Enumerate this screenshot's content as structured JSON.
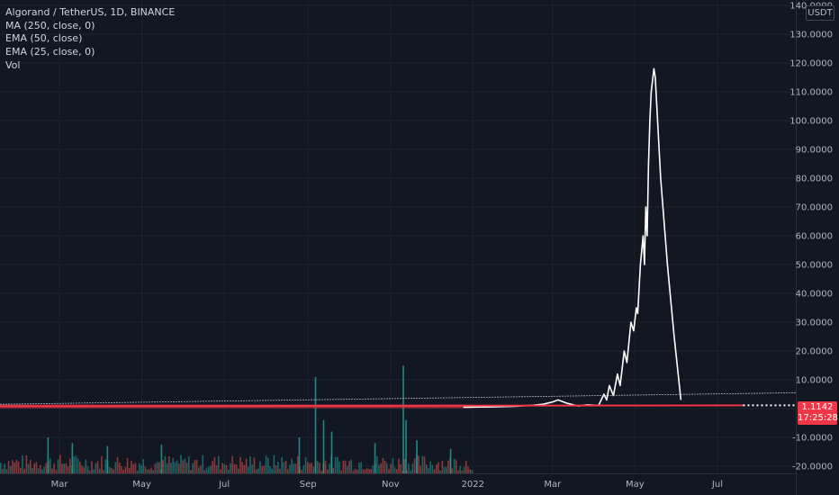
{
  "legend": {
    "symbol": "Algorand / TetherUS, 1D, BINANCE",
    "ma250": "MA (250, close, 0)",
    "ema50": "EMA (50, close)",
    "ema25": "EMA (25, close, 0)",
    "vol": "Vol"
  },
  "currency_label": "USDT",
  "last_price": {
    "value": "1.1142",
    "countdown": "17:25:28",
    "color": "#f23645"
  },
  "chart_data": {
    "type": "line",
    "title": "Algorand / TetherUS, 1D, BINANCE",
    "y_axis": {
      "ticks": [
        -20,
        -10,
        0,
        10,
        20,
        30,
        40,
        50,
        60,
        70,
        80,
        90,
        100,
        110,
        120,
        130,
        140
      ],
      "tick_labels": [
        "-20.0000",
        "-10.0000",
        "",
        "10.0000",
        "20.0000",
        "30.0000",
        "40.0000",
        "50.0000",
        "60.0000",
        "70.0000",
        "80.0000",
        "90.0000",
        "100.0000",
        "110.0000",
        "120.0000",
        "130.0000",
        "140.0000"
      ],
      "ylim": [
        -20,
        140
      ],
      "position": "right"
    },
    "x_axis": {
      "ticks": [
        "2021-03-01",
        "2021-05-01",
        "2021-07-01",
        "2021-09-01",
        "2021-11-01",
        "2022-01-01",
        "2022-03-01",
        "2022-05-01",
        "2022-07-01"
      ],
      "tick_labels": [
        "Mar",
        "May",
        "Jul",
        "Sep",
        "Nov",
        "2022",
        "Mar",
        "May",
        "Jul"
      ],
      "xlim": [
        "2021-01-16",
        "2022-08-28"
      ]
    },
    "series": [
      {
        "name": "",
        "color": "#ffffff",
        "points": [
          [
            "2021-12-25",
            0.5
          ],
          [
            "2022-01-15",
            0.6
          ],
          [
            "2022-02-01",
            0.8
          ],
          [
            "2022-02-15",
            1.2
          ],
          [
            "2022-02-22",
            1.5
          ],
          [
            "2022-03-01",
            2.3
          ],
          [
            "2022-03-05",
            3.0
          ],
          [
            "2022-03-12",
            1.8
          ],
          [
            "2022-03-20",
            0.9
          ],
          [
            "2022-03-27",
            1.3
          ],
          [
            "2022-04-04",
            1.1
          ],
          [
            "2022-04-08",
            5.0
          ],
          [
            "2022-04-10",
            3.0
          ],
          [
            "2022-04-12",
            8.0
          ],
          [
            "2022-04-15",
            4.5
          ],
          [
            "2022-04-18",
            12.0
          ],
          [
            "2022-04-20",
            8.0
          ],
          [
            "2022-04-23",
            20.0
          ],
          [
            "2022-04-25",
            16.0
          ],
          [
            "2022-04-28",
            30.0
          ],
          [
            "2022-04-30",
            27.0
          ],
          [
            "2022-05-02",
            35.0
          ],
          [
            "2022-05-03",
            33.0
          ],
          [
            "2022-05-05",
            50.0
          ],
          [
            "2022-05-06",
            55.0
          ],
          [
            "2022-05-07",
            60.0
          ],
          [
            "2022-05-08",
            50.0
          ],
          [
            "2022-05-09",
            70.0
          ],
          [
            "2022-05-10",
            60.0
          ],
          [
            "2022-05-11",
            85.0
          ],
          [
            "2022-05-12",
            100.0
          ],
          [
            "2022-05-13",
            110.0
          ],
          [
            "2022-05-15",
            118.0
          ],
          [
            "2022-05-16",
            115.0
          ],
          [
            "2022-05-20",
            80.0
          ],
          [
            "2022-05-25",
            50.0
          ],
          [
            "2022-05-30",
            25.0
          ],
          [
            "2022-06-04",
            3.0
          ]
        ]
      },
      {
        "name": "",
        "color": "#f23645",
        "points": [
          [
            "2021-01-16",
            0.8
          ],
          [
            "2022-07-20",
            1.1142
          ]
        ]
      },
      {
        "name": "",
        "color": "#b2b5be",
        "points": [
          [
            "2021-01-16",
            1.5
          ],
          [
            "2022-08-28",
            5.5
          ]
        ]
      }
    ],
    "volume": {
      "name": "Vol",
      "color_up": "#26a69a",
      "color_down": "#ef5350",
      "spikes": [
        [
          "2021-02-20",
          -10.0
        ],
        [
          "2021-03-10",
          -12.0
        ],
        [
          "2021-04-05",
          -13.0
        ],
        [
          "2021-05-15",
          -12.5
        ],
        [
          "2021-08-25",
          -10.0
        ],
        [
          "2021-09-06",
          11.0
        ],
        [
          "2021-09-12",
          -4.0
        ],
        [
          "2021-09-18",
          -8.0
        ],
        [
          "2021-10-20",
          -12.0
        ],
        [
          "2021-11-10",
          15.0
        ],
        [
          "2021-11-12",
          -4.0
        ],
        [
          "2021-11-20",
          -11.0
        ],
        [
          "2021-12-15",
          -14.0
        ]
      ]
    }
  }
}
